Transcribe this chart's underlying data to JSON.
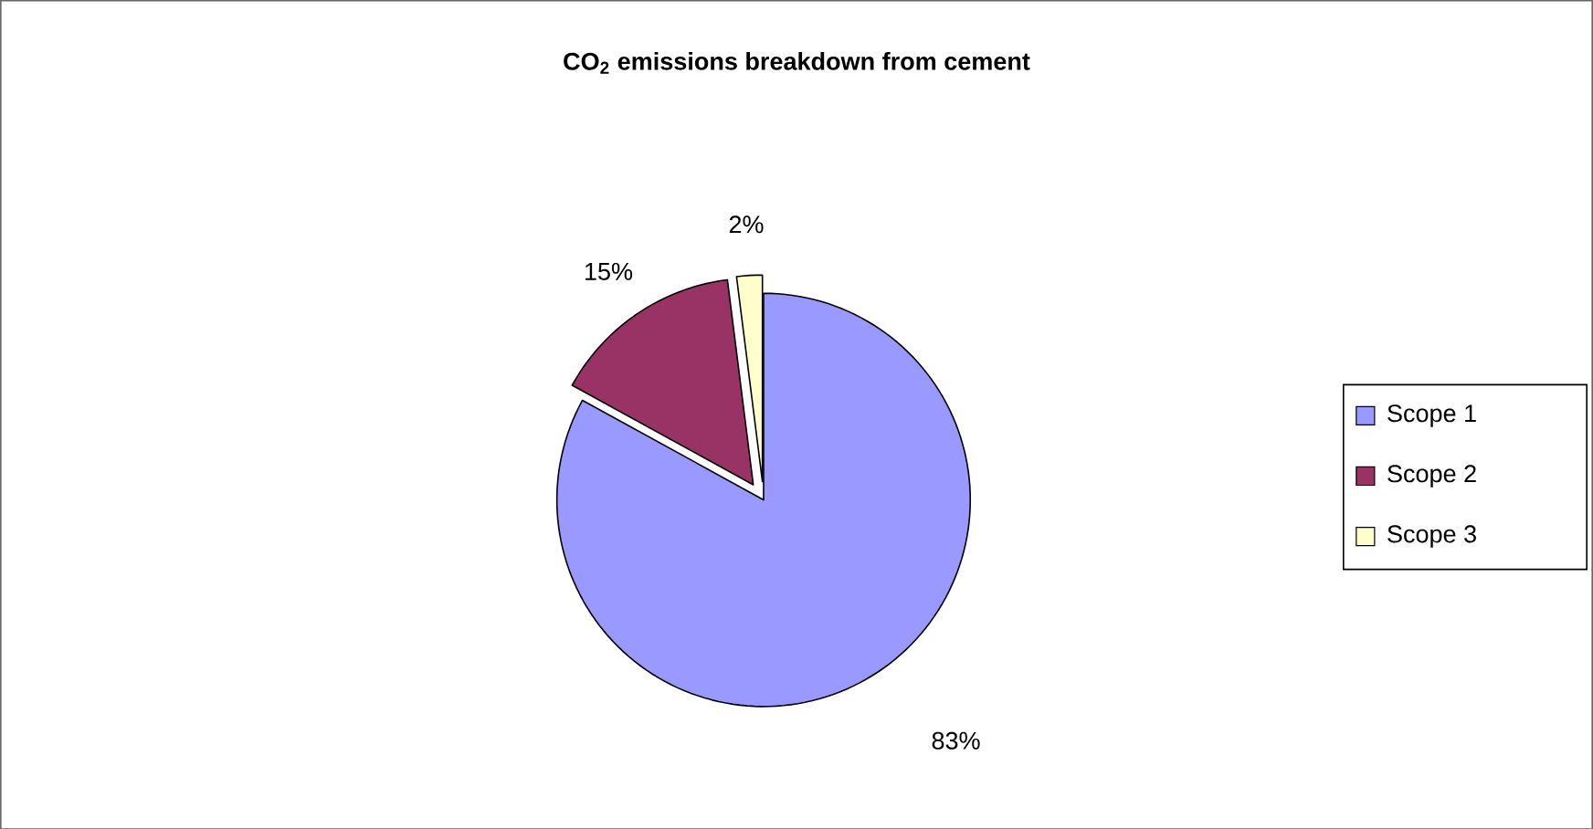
{
  "chart_data": {
    "type": "pie",
    "title": "CO$_{2}$ emissions breakdown from cement",
    "categories": [
      "Scope 1",
      "Scope 2",
      "Scope 3"
    ],
    "values": [
      83,
      15,
      2
    ],
    "colors": [
      "#9999ff",
      "#993366",
      "#ffffcc"
    ],
    "value_labels": [
      "83%",
      "15%",
      "2%"
    ],
    "legend": "right"
  }
}
